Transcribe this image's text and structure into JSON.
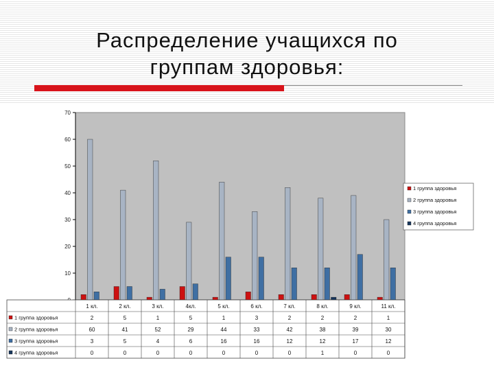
{
  "slide": {
    "title_line1": "Распределение учащихся по",
    "title_line2": "группам здоровья:",
    "accent_color": "#d8141b"
  },
  "chart_data": {
    "type": "bar",
    "categories": [
      "1 кл.",
      "2 кл.",
      "3 кл.",
      "4кл.",
      "5 кл.",
      "6 кл.",
      "7 кл.",
      "8 кл.",
      "9 кл.",
      "11 кл."
    ],
    "series": [
      {
        "name": "1 группа здоровья",
        "color": "#cc1111",
        "values": [
          2,
          5,
          1,
          5,
          1,
          3,
          2,
          2,
          2,
          1
        ]
      },
      {
        "name": "2 группа здоровья",
        "color": "#a8b4c4",
        "values": [
          60,
          41,
          52,
          29,
          44,
          33,
          42,
          38,
          39,
          30
        ]
      },
      {
        "name": "3 группа здоровья",
        "color": "#3f6fa3",
        "values": [
          3,
          5,
          4,
          6,
          16,
          16,
          12,
          12,
          17,
          12
        ]
      },
      {
        "name": "4 группа здоровья",
        "color": "#17365d",
        "values": [
          0,
          0,
          0,
          0,
          0,
          0,
          0,
          1,
          0,
          0
        ]
      }
    ],
    "ylim": [
      0,
      70
    ],
    "yticks": [
      0,
      10,
      20,
      30,
      40,
      50,
      60,
      70
    ],
    "grid": false,
    "legend": "right",
    "plot_background": "#c0c0c0",
    "data_table": true
  }
}
